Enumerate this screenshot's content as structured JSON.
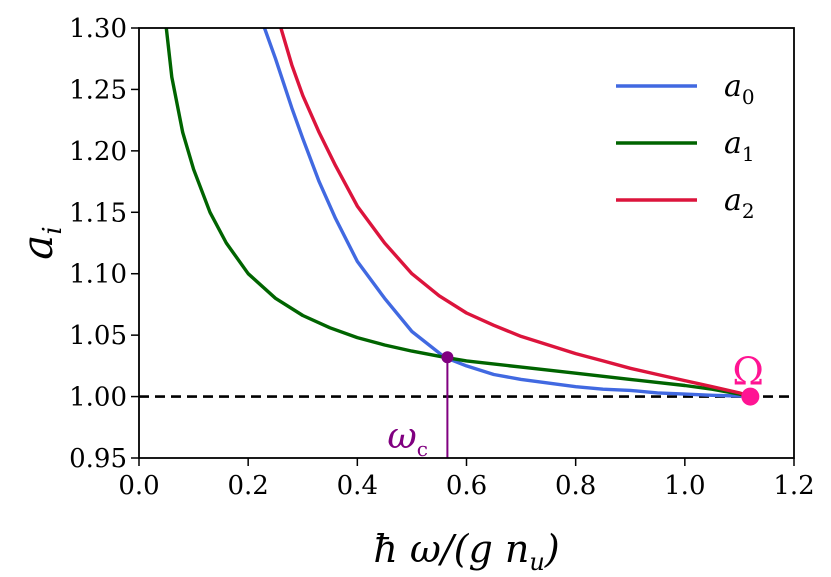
{
  "chart_data": {
    "type": "line",
    "xlabel": "ħ ω/(g n_u)",
    "ylabel": "a_i",
    "xlim": [
      0.0,
      1.2
    ],
    "ylim": [
      0.95,
      1.3
    ],
    "xticks": [
      "0.0",
      "0.2",
      "0.4",
      "0.6",
      "0.8",
      "1.0",
      "1.2"
    ],
    "yticks": [
      "0.95",
      "1.00",
      "1.05",
      "1.10",
      "1.15",
      "1.20",
      "1.25",
      "1.30"
    ],
    "legend_position": "top-right",
    "series": [
      {
        "name": "a_0",
        "color": "#4169e1",
        "x": [
          0.23,
          0.25,
          0.28,
          0.3,
          0.33,
          0.36,
          0.4,
          0.45,
          0.5,
          0.56,
          0.6,
          0.65,
          0.7,
          0.75,
          0.8,
          0.85,
          0.9,
          0.95,
          1.0,
          1.05,
          1.1,
          1.12
        ],
        "y": [
          1.3,
          1.275,
          1.235,
          1.21,
          1.175,
          1.145,
          1.11,
          1.08,
          1.053,
          1.032,
          1.025,
          1.018,
          1.014,
          1.011,
          1.008,
          1.006,
          1.005,
          1.003,
          1.002,
          1.001,
          1.0005,
          1.0
        ]
      },
      {
        "name": "a_1",
        "color": "#006400",
        "x": [
          0.05,
          0.06,
          0.08,
          0.1,
          0.13,
          0.16,
          0.2,
          0.25,
          0.3,
          0.35,
          0.4,
          0.45,
          0.5,
          0.56,
          0.6,
          0.7,
          0.8,
          0.9,
          1.0,
          1.05,
          1.1,
          1.12
        ],
        "y": [
          1.3,
          1.26,
          1.215,
          1.185,
          1.15,
          1.125,
          1.1,
          1.08,
          1.066,
          1.056,
          1.048,
          1.042,
          1.037,
          1.032,
          1.029,
          1.024,
          1.019,
          1.014,
          1.009,
          1.006,
          1.002,
          1.0
        ]
      },
      {
        "name": "a_2",
        "color": "#dc143c",
        "x": [
          0.26,
          0.28,
          0.3,
          0.33,
          0.36,
          0.4,
          0.45,
          0.5,
          0.55,
          0.6,
          0.65,
          0.7,
          0.75,
          0.8,
          0.85,
          0.9,
          0.95,
          1.0,
          1.05,
          1.1,
          1.12
        ],
        "y": [
          1.3,
          1.27,
          1.245,
          1.215,
          1.188,
          1.155,
          1.125,
          1.1,
          1.082,
          1.068,
          1.058,
          1.049,
          1.042,
          1.035,
          1.029,
          1.023,
          1.018,
          1.013,
          1.008,
          1.003,
          1.0
        ]
      }
    ],
    "reference_line": {
      "y": 1.0,
      "style": "dashed",
      "color": "#000000"
    },
    "annotations": [
      {
        "label": "ω_c",
        "x": 0.565,
        "y": 1.032,
        "color": "#800080",
        "vline_to_axis": true
      },
      {
        "label": "Ω",
        "x": 1.12,
        "y": 1.0,
        "color": "#ff1493"
      }
    ]
  }
}
